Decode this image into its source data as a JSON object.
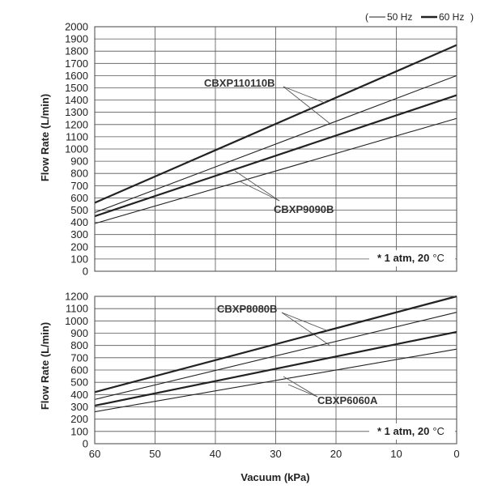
{
  "legend": {
    "open": "(",
    "item_50": "50 Hz",
    "item_60": "60 Hz",
    "close": ")"
  },
  "chart_data": [
    {
      "type": "line",
      "title": "",
      "xlabel": "",
      "ylabel": "Flow Rate (L/min)",
      "xlim": [
        60,
        0
      ],
      "ylim": [
        0,
        2000
      ],
      "y_ticks": [
        "0",
        "100",
        "200",
        "300",
        "400",
        "500",
        "600",
        "700",
        "800",
        "900",
        "1000",
        "1100",
        "1200",
        "1300",
        "1400",
        "1500",
        "1600",
        "1700",
        "1800",
        "1900",
        "2000"
      ],
      "x_gridlines": [
        50,
        40,
        30,
        20,
        10
      ],
      "series": [
        {
          "name": "CBXP110110B 60 Hz",
          "model": "CBXP110110B",
          "freq": "60 Hz",
          "x": [
            60,
            0
          ],
          "values": [
            560,
            1850
          ]
        },
        {
          "name": "CBXP110110B 50 Hz",
          "model": "CBXP110110B",
          "freq": "50 Hz",
          "x": [
            60,
            0
          ],
          "values": [
            480,
            1600
          ]
        },
        {
          "name": "CBXP9090B 60 Hz",
          "model": "CBXP9090B",
          "freq": "60 Hz",
          "x": [
            60,
            0
          ],
          "values": [
            450,
            1440
          ]
        },
        {
          "name": "CBXP9090B 50 Hz",
          "model": "CBXP9090B",
          "freq": "50 Hz",
          "x": [
            60,
            0
          ],
          "values": [
            390,
            1250
          ]
        }
      ],
      "annotations": [
        {
          "label": "CBXP110110B",
          "model": "CBXP110110B"
        },
        {
          "label": "CBXP9090B",
          "model": "CBXP9090B"
        }
      ],
      "note": {
        "prefix": "* 1 atm, 20",
        "unit": "°C"
      }
    },
    {
      "type": "line",
      "title": "",
      "xlabel": "Vacuum (kPa)",
      "ylabel": "Flow Rate (L/min)",
      "xlim": [
        60,
        0
      ],
      "ylim": [
        0,
        1200
      ],
      "y_ticks": [
        "0",
        "100",
        "200",
        "300",
        "400",
        "500",
        "600",
        "700",
        "800",
        "900",
        "1000",
        "1100",
        "1200"
      ],
      "x_ticks": [
        "60",
        "50",
        "40",
        "30",
        "20",
        "10",
        "0"
      ],
      "series": [
        {
          "name": "CBXP8080B 60 Hz",
          "model": "CBXP8080B",
          "freq": "60 Hz",
          "x": [
            60,
            0
          ],
          "values": [
            420,
            1200
          ]
        },
        {
          "name": "CBXP8080B 50 Hz",
          "model": "CBXP8080B",
          "freq": "50 Hz",
          "x": [
            60,
            0
          ],
          "values": [
            360,
            1070
          ]
        },
        {
          "name": "CBXP6060A 60 Hz",
          "model": "CBXP6060A",
          "freq": "60 Hz",
          "x": [
            60,
            0
          ],
          "values": [
            310,
            910
          ]
        },
        {
          "name": "CBXP6060A 50 Hz",
          "model": "CBXP6060A",
          "freq": "50 Hz",
          "x": [
            60,
            0
          ],
          "values": [
            260,
            770
          ]
        }
      ],
      "annotations": [
        {
          "label": "CBXP8080B",
          "model": "CBXP8080B"
        },
        {
          "label": "CBXP6060A",
          "model": "CBXP6060A"
        }
      ],
      "note": {
        "prefix": "* 1 atm, 20",
        "unit": "°C"
      }
    }
  ]
}
